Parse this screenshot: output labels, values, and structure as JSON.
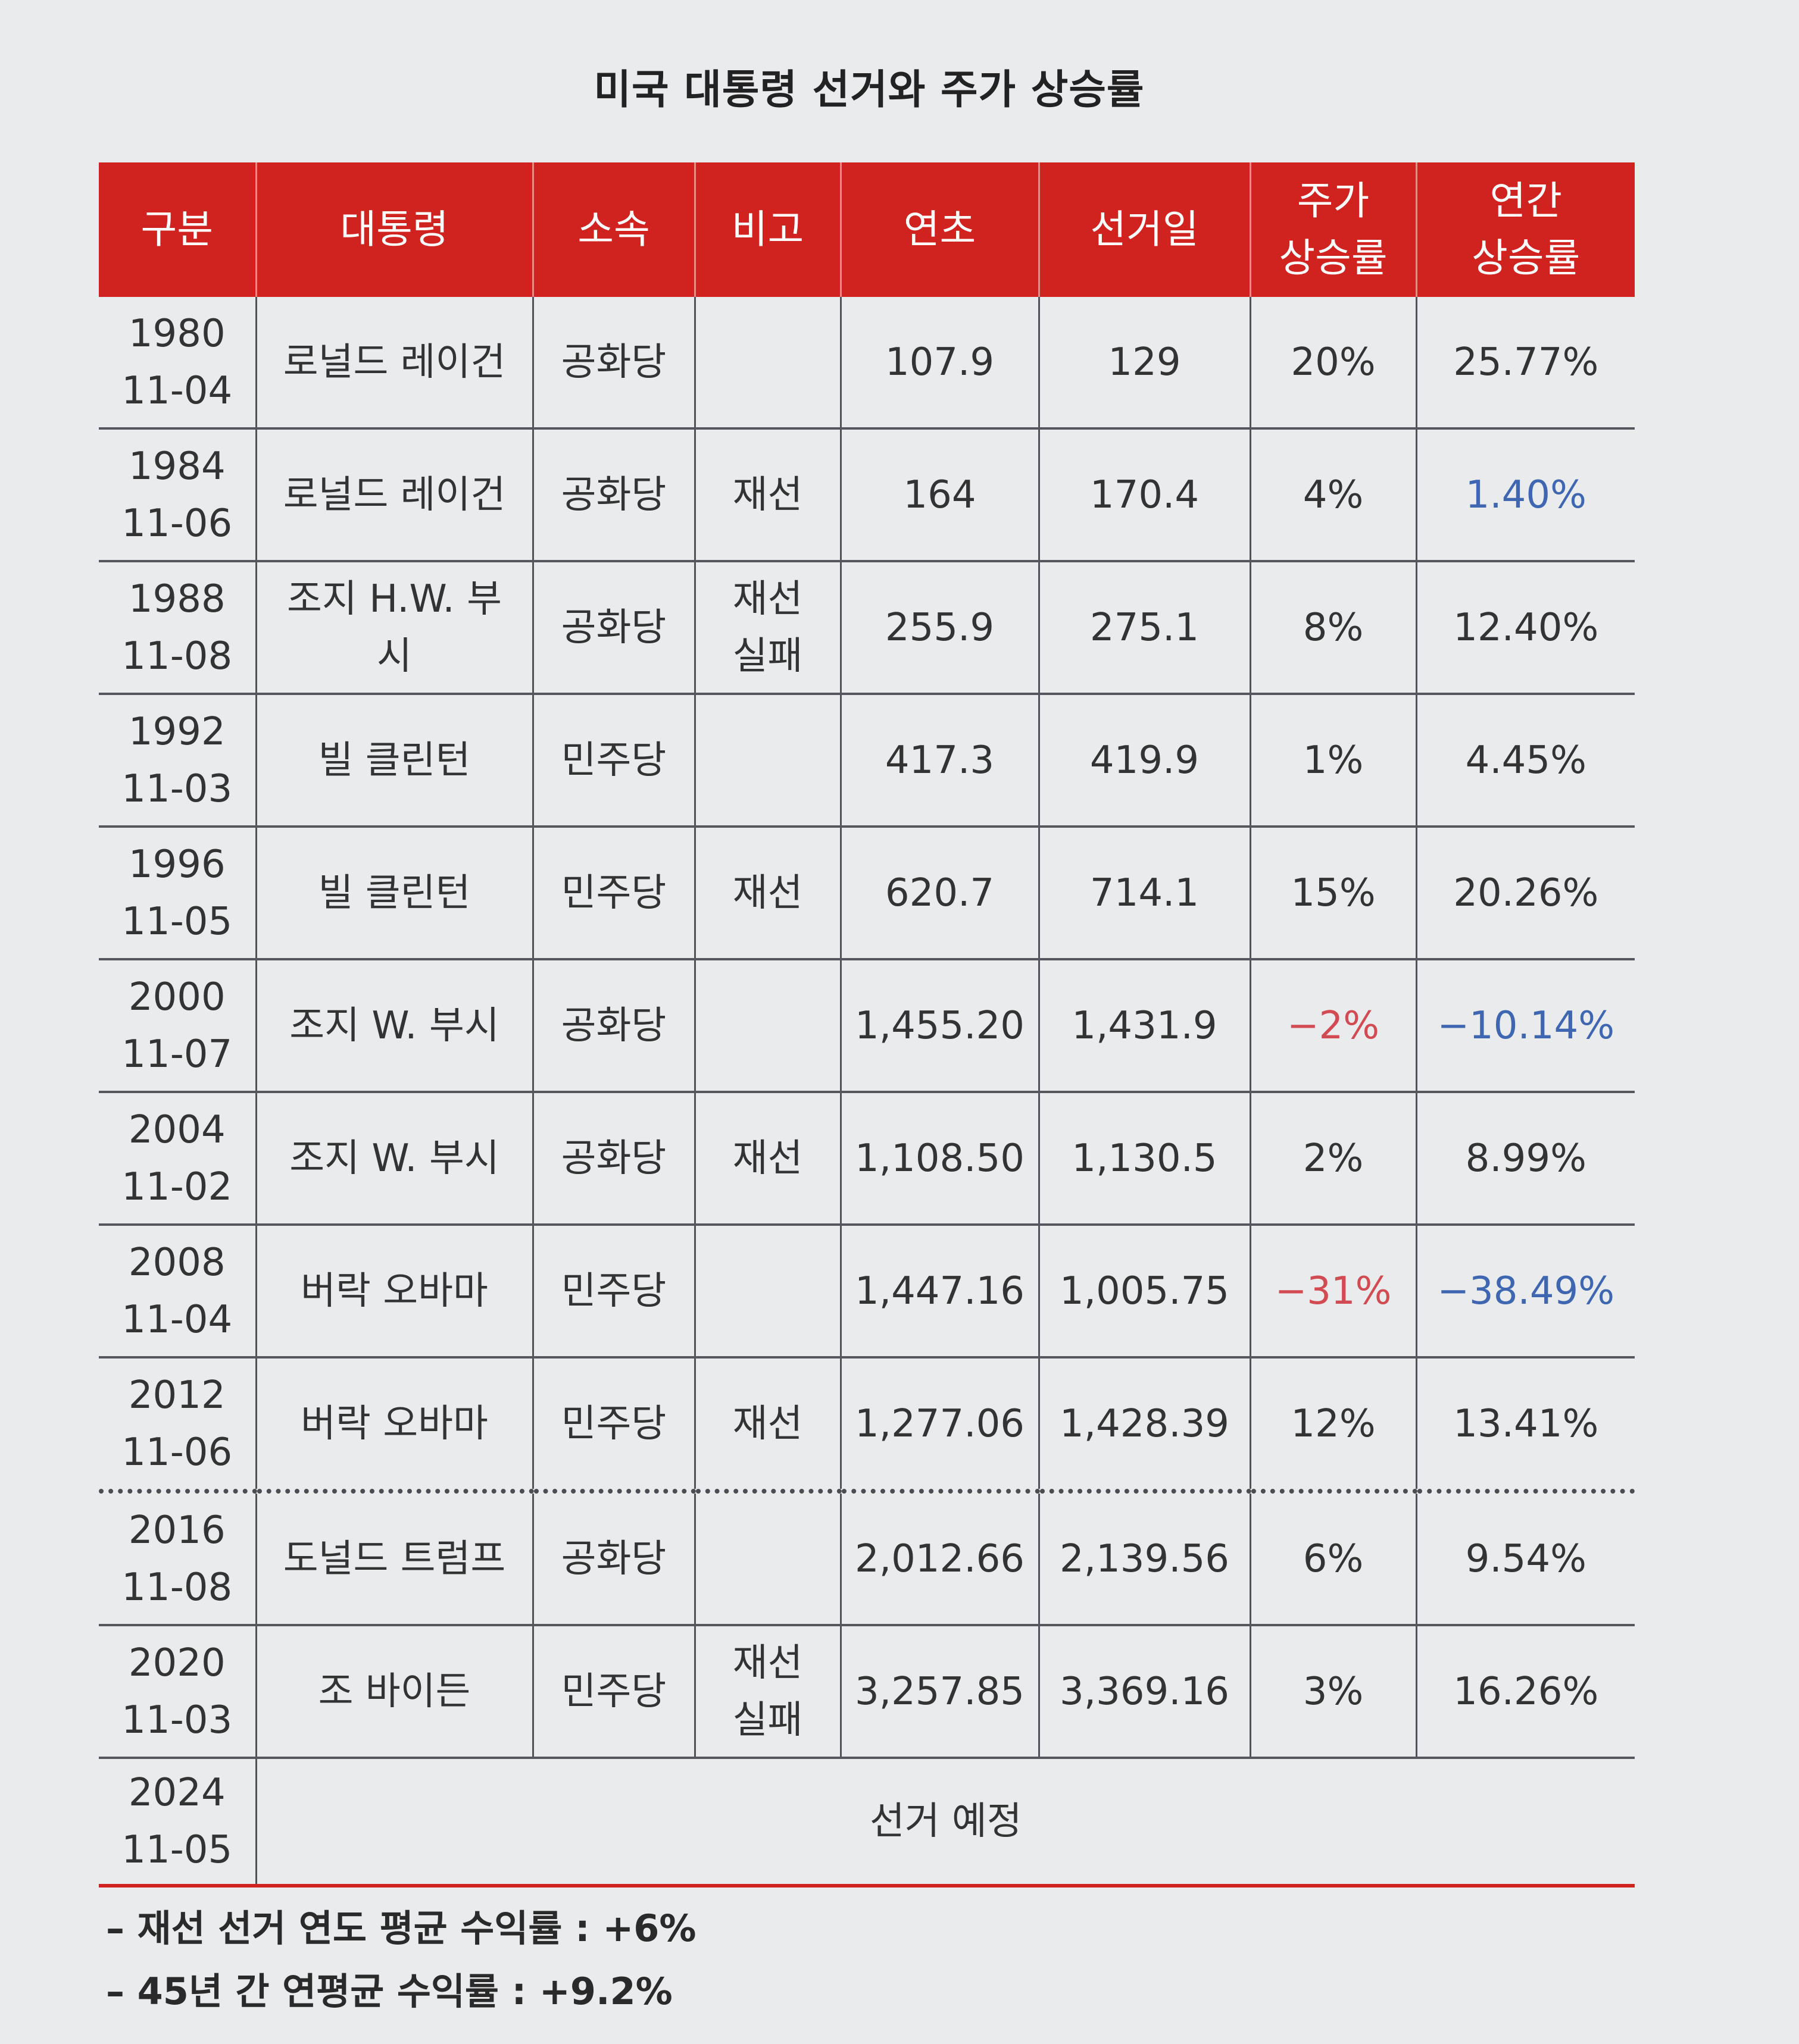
{
  "title": "미국 대통령 선거와 주가 상승률",
  "headers": [
    "구분",
    "대통령",
    "소속",
    "비고",
    "연초",
    "선거일",
    "주가\n상승률",
    "연간\n상승률"
  ],
  "rows": [
    {
      "date": "1980\n11-04",
      "president": "로널드 레이건",
      "party": "공화당",
      "note": "",
      "start": "107.9",
      "election": "129",
      "rise": "20%",
      "annual": "25.77%"
    },
    {
      "date": "1984\n11-06",
      "president": "로널드 레이건",
      "party": "공화당",
      "note": "재선",
      "start": "164",
      "election": "170.4",
      "rise": "4%",
      "annual": "1.40%"
    },
    {
      "date": "1988\n11-08",
      "president": "조지 H.W. 부\n시",
      "party": "공화당",
      "note": "재선\n실패",
      "start": "255.9",
      "election": "275.1",
      "rise": "8%",
      "annual": "12.40%"
    },
    {
      "date": "1992\n11-03",
      "president": "빌 클린턴",
      "party": "민주당",
      "note": "",
      "start": "417.3",
      "election": "419.9",
      "rise": "1%",
      "annual": "4.45%"
    },
    {
      "date": "1996\n11-05",
      "president": "빌 클린턴",
      "party": "민주당",
      "note": "재선",
      "start": "620.7",
      "election": "714.1",
      "rise": "15%",
      "annual": "20.26%"
    },
    {
      "date": "2000\n11-07",
      "president": "조지 W. 부시",
      "party": "공화당",
      "note": "",
      "start": "1,455.20",
      "election": "1,431.9",
      "rise": "−2%",
      "annual": "−10.14%"
    },
    {
      "date": "2004\n11-02",
      "president": "조지 W. 부시",
      "party": "공화당",
      "note": "재선",
      "start": "1,108.50",
      "election": "1,130.5",
      "rise": "2%",
      "annual": "8.99%"
    },
    {
      "date": "2008\n11-04",
      "president": "버락 오바마",
      "party": "민주당",
      "note": "",
      "start": "1,447.16",
      "election": "1,005.75",
      "rise": "−31%",
      "annual": "−38.49%"
    },
    {
      "date": "2012\n11-06",
      "president": "버락 오바마",
      "party": "민주당",
      "note": "재선",
      "start": "1,277.06",
      "election": "1,428.39",
      "rise": "12%",
      "annual": "13.41%"
    },
    {
      "date": "2016\n11-08",
      "president": "도널드 트럼프",
      "party": "공화당",
      "note": "",
      "start": "2,012.66",
      "election": "2,139.56",
      "rise": "6%",
      "annual": "9.54%"
    },
    {
      "date": "2020\n11-03",
      "president": "조 바이든",
      "party": "민주당",
      "note": "재선\n실패",
      "start": "3,257.85",
      "election": "3,369.16",
      "rise": "3%",
      "annual": "16.26%"
    }
  ],
  "last_row": {
    "date": "2024\n11-05",
    "text": "선거 예정"
  },
  "notes": [
    "– 재선 선거 연도 평균 수익률 : +6%",
    "– 45년 간 연평균 수익률 : +9.2%"
  ],
  "colors": {
    "header": "#d0231f",
    "negative_rise": "#d24b52",
    "negative_annual": "#3f66b1"
  }
}
